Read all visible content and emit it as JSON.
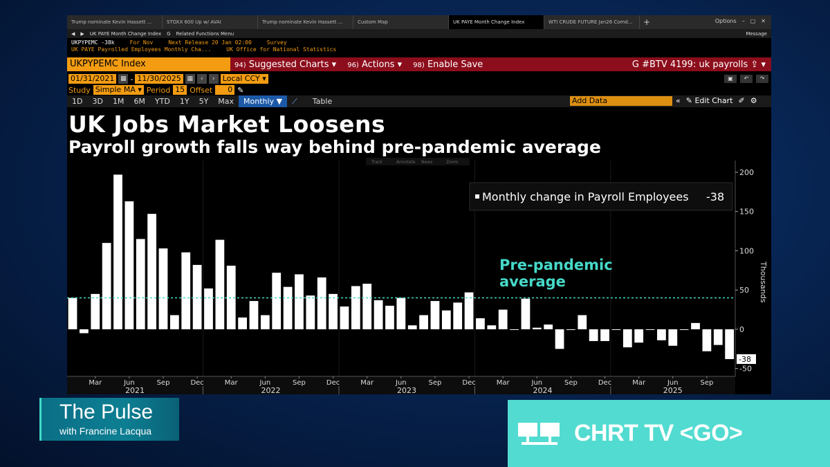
{
  "browser": {
    "tabs": [
      {
        "label": "Trump nominate Kevin Hassett ..."
      },
      {
        "label": "STOXX 600 Up w/ AVAI"
      },
      {
        "label": "Trump nominate Kevin Hassett ..."
      },
      {
        "label": "Custom Map"
      },
      {
        "label": "UK PAYE Month Change Index"
      },
      {
        "label": "WTI CRUDE FUTURE Jan26 Comd..."
      }
    ],
    "active_tab": 4,
    "right_label": "Options",
    "nav": {
      "breadcrumb": "UK PAYE Month Change Index",
      "g_label": "G",
      "related": "Related Functions Menu",
      "message": "Message"
    }
  },
  "ticker": {
    "symbol": "UKPYPEMC",
    "value": "-38k",
    "period": "For Nov",
    "next_release": "Next Release 20 Jan 02:00",
    "survey": "Survey",
    "description": "UK PAYE Payrolled Employees Monthly Cha...",
    "source": "UK Office for National Statistics"
  },
  "toolbar": {
    "index_name": "UKPYPEMC Index",
    "suggested": {
      "num": "94)",
      "label": "Suggested Charts"
    },
    "actions": {
      "num": "96)",
      "label": "Actions"
    },
    "enable_save": {
      "num": "98)",
      "label": "Enable Save"
    },
    "btv": "G #BTV 4199: uk payrolls"
  },
  "range": {
    "start": "01/31/2021",
    "end": "11/30/2025",
    "currency": "Local CCY",
    "study_label": "Study",
    "study": "Simple MA",
    "period_label": "Period",
    "period": "15",
    "offset_label": "Offset",
    "offset": "0"
  },
  "periods": [
    "1D",
    "3D",
    "1M",
    "6M",
    "YTD",
    "1Y",
    "5Y",
    "Max"
  ],
  "frequency": "Monthly",
  "table_label": "Table",
  "add_data_placeholder": "Add Data",
  "edit_chart": "Edit Chart",
  "headline": {
    "title": "UK Jobs Market Loosens",
    "subtitle": "Payroll growth falls way behind pre-pandemic average"
  },
  "chart_data": {
    "type": "bar",
    "series": [
      {
        "name": "Monthly change in Payroll Employees",
        "values": [
          40,
          -5,
          45,
          110,
          197,
          163,
          115,
          147,
          103,
          18,
          98,
          82,
          52,
          114,
          81,
          15,
          36,
          18,
          72,
          54,
          70,
          43,
          66,
          45,
          29,
          55,
          58,
          37,
          30,
          40,
          5,
          18,
          36,
          24,
          34,
          47,
          14,
          5,
          25,
          0,
          39,
          2,
          6,
          -25,
          0,
          18,
          -15,
          -15,
          0,
          -23,
          -17,
          0,
          -14,
          -21,
          0,
          8,
          -28,
          -20,
          -38
        ]
      }
    ],
    "start": "2021-01",
    "frequency": "monthly",
    "legend_value": "-38",
    "last_value_label": "-38",
    "x_tick_months": [
      "Mar",
      "Jun",
      "Sep",
      "Dec",
      "Mar",
      "Jun",
      "Sep",
      "Dec",
      "Mar",
      "Jun",
      "Sep",
      "Dec",
      "Mar",
      "Jun",
      "Sep",
      "Dec",
      "Mar",
      "Jun",
      "Sep"
    ],
    "x_tick_years": [
      "2021",
      "2022",
      "2023",
      "2024",
      "2025"
    ],
    "y_ticks": [
      200,
      150,
      100,
      50,
      0,
      -50
    ],
    "ylim": [
      -60,
      215
    ],
    "ylabel": "Thousands",
    "reference_line": {
      "value": 40,
      "label_line1": "Pre-pandemic",
      "label_line2": "average",
      "color": "#46d9c9"
    },
    "toolbar_small": [
      "Track",
      "Annotate",
      "News",
      "Zoom"
    ],
    "legend_position": "top-right",
    "bar_color": "#ffffff",
    "background": "#000000"
  },
  "show": {
    "title": "The Pulse",
    "subtitle": "with Francine Lacqua"
  },
  "chrt_tv": {
    "label": "CHRT TV <GO>",
    "color": "#52dbd0"
  }
}
